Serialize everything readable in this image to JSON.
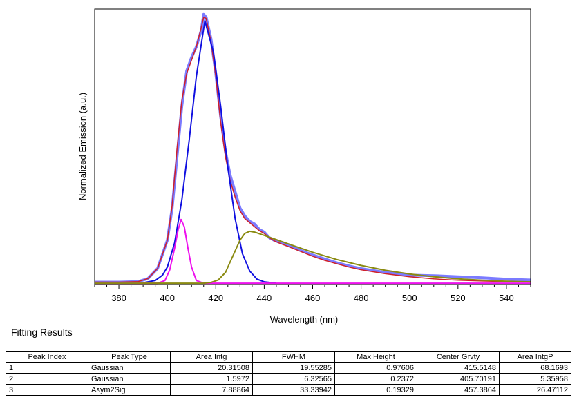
{
  "chart_data": {
    "type": "line",
    "xlabel": "Wavelength (nm)",
    "ylabel": "Normalized Emission (a.u.)",
    "xlim": [
      370,
      550
    ],
    "ylim": [
      -0.005,
      1.02
    ],
    "x_ticks": [
      380,
      400,
      420,
      440,
      460,
      480,
      500,
      520,
      540
    ],
    "y_ticks_shown": false,
    "grid": false,
    "legend": "none",
    "series": [
      {
        "role": "measured",
        "color": "#7b7bff",
        "x": [
          370,
          380,
          388,
          392,
          396,
          400,
          402,
          404,
          406,
          408,
          410,
          412,
          414,
          415,
          416,
          418,
          420,
          422,
          424,
          426,
          428,
          430,
          432,
          434,
          436,
          438,
          440,
          442,
          444,
          446,
          448,
          450,
          455,
          460,
          465,
          470,
          475,
          480,
          490,
          500,
          510,
          520,
          530,
          540,
          550
        ],
        "y": [
          0.004,
          0.004,
          0.006,
          0.017,
          0.055,
          0.16,
          0.28,
          0.47,
          0.66,
          0.79,
          0.84,
          0.88,
          0.94,
          1.0,
          0.99,
          0.91,
          0.78,
          0.62,
          0.49,
          0.4,
          0.34,
          0.28,
          0.25,
          0.23,
          0.22,
          0.2,
          0.19,
          0.17,
          0.16,
          0.153,
          0.147,
          0.14,
          0.122,
          0.105,
          0.09,
          0.076,
          0.064,
          0.054,
          0.04,
          0.03,
          0.028,
          0.024,
          0.02,
          0.015,
          0.012
        ]
      },
      {
        "role": "cumulative fit",
        "color": "#d0202a",
        "x": [
          370,
          380,
          388,
          392,
          396,
          400,
          402,
          404,
          406,
          408,
          410,
          412,
          414,
          415,
          416,
          418,
          420,
          422,
          424,
          426,
          428,
          430,
          432,
          434,
          436,
          438,
          440,
          442,
          444,
          446,
          448,
          450,
          455,
          460,
          465,
          470,
          475,
          480,
          490,
          500,
          510,
          520,
          530,
          540,
          550
        ],
        "y": [
          0.004,
          0.004,
          0.006,
          0.017,
          0.055,
          0.16,
          0.29,
          0.5,
          0.68,
          0.78,
          0.83,
          0.88,
          0.95,
          0.99,
          0.985,
          0.9,
          0.77,
          0.6,
          0.47,
          0.38,
          0.32,
          0.27,
          0.24,
          0.225,
          0.21,
          0.195,
          0.185,
          0.17,
          0.158,
          0.15,
          0.143,
          0.136,
          0.118,
          0.1,
          0.085,
          0.072,
          0.06,
          0.05,
          0.035,
          0.024,
          0.016,
          0.011,
          0.008,
          0.006,
          0.005
        ]
      },
      {
        "role": "peak 1 Gaussian",
        "color": "#1010e0",
        "x": [
          390,
          395,
          398,
          400,
          403,
          406,
          409,
          412,
          415.5,
          419,
          422,
          425,
          428,
          431,
          434,
          437,
          440,
          443,
          445
        ],
        "y": [
          0.002,
          0.01,
          0.03,
          0.06,
          0.15,
          0.31,
          0.53,
          0.77,
          0.976,
          0.86,
          0.66,
          0.43,
          0.24,
          0.11,
          0.045,
          0.015,
          0.005,
          0.002,
          0.001
        ]
      },
      {
        "role": "peak 2 Gaussian",
        "color": "#ee10ee",
        "x": [
          370,
          396,
          399,
          401,
          403,
          404.5,
          405.7,
          407,
          408.5,
          410,
          412,
          415,
          550
        ],
        "y": [
          0.0,
          0.0,
          0.01,
          0.05,
          0.13,
          0.2,
          0.237,
          0.21,
          0.13,
          0.06,
          0.01,
          0.0,
          0.0
        ]
      },
      {
        "role": "peak 3 Asym2Sig",
        "color": "#8a8a10",
        "x": [
          370,
          415,
          418,
          421,
          424,
          427,
          430,
          432,
          434,
          436,
          440,
          445,
          450,
          460,
          470,
          480,
          490,
          500,
          510,
          520,
          530,
          540,
          550
        ],
        "y": [
          0.0,
          0.0,
          0.003,
          0.012,
          0.04,
          0.1,
          0.16,
          0.185,
          0.193,
          0.19,
          0.178,
          0.162,
          0.146,
          0.115,
          0.088,
          0.066,
          0.048,
          0.034,
          0.024,
          0.016,
          0.011,
          0.007,
          0.005
        ]
      }
    ]
  },
  "results": {
    "title": "Fitting Results",
    "columns": [
      "Peak Index",
      "Peak Type",
      "Area Intg",
      "FWHM",
      "Max Height",
      "Center Grvty",
      "Area IntgP"
    ],
    "rows": [
      [
        "1",
        "Gaussian",
        "20.31508",
        "19.55285",
        "0.97606",
        "415.5148",
        "68.1693"
      ],
      [
        "2",
        "Gaussian",
        "1.5972",
        "6.32565",
        "0.2372",
        "405.70191",
        "5.35958"
      ],
      [
        "3",
        "Asym2Sig",
        "7.88864",
        "33.33942",
        "0.19329",
        "457.3864",
        "26.47112"
      ]
    ]
  }
}
